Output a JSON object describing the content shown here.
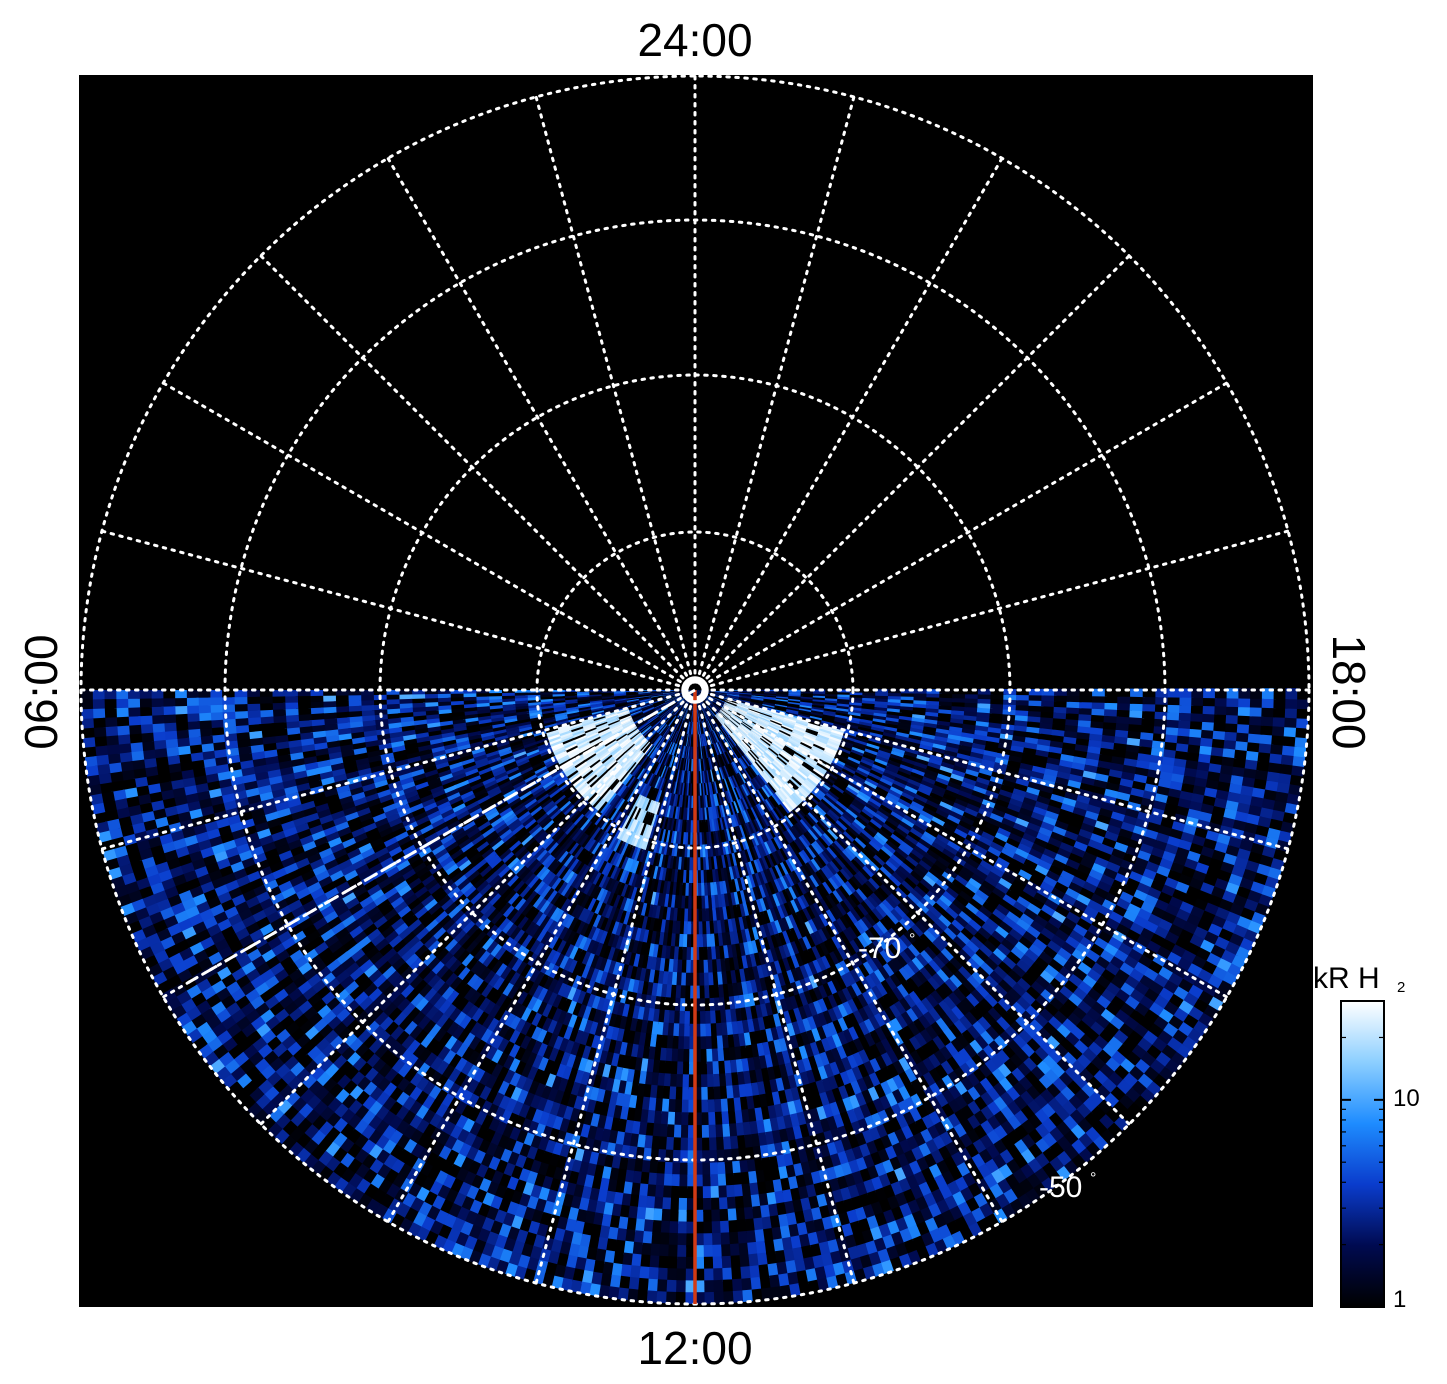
{
  "chart_data": {
    "type": "heatmap",
    "projection": "polar",
    "hemisphere": "south",
    "local_time_labels": {
      "top": "24:00",
      "bottom": "12:00",
      "left": "06:00",
      "right": "18:00"
    },
    "latitude_circles_deg": [
      -90,
      -80,
      -70,
      -60,
      -50,
      -40
    ],
    "latitude_labels": [
      {
        "text": "-70",
        "unit": "°",
        "lat": -70
      },
      {
        "text": "-50",
        "unit": "°",
        "lat": -50
      }
    ],
    "meridian_spacing_hours": 1,
    "observed_region": "dayside (06:00 to 18:00 through 12:00)",
    "red_line_local_time": "12:00",
    "dashed_line_local_time": "08:00",
    "bright_features": [
      {
        "description": "dawn arc",
        "local_time_range": [
          "07:00",
          "09:30"
        ],
        "lat_range": [
          -76,
          -70
        ],
        "intensity_kR": 30
      },
      {
        "description": "dusk arc",
        "local_time_range": [
          "14:30",
          "17:00"
        ],
        "lat_range": [
          -78,
          -70
        ],
        "intensity_kR": 30
      },
      {
        "description": "morning spot",
        "local_time": "10:30",
        "lat": -71,
        "intensity_kR": 25
      }
    ],
    "colorbar": {
      "title": "kR H",
      "title_subscript": "2",
      "scale": "log",
      "range": [
        1,
        30
      ],
      "ticks": [
        {
          "value": 1,
          "label": "1"
        },
        {
          "value": 10,
          "label": "10"
        }
      ],
      "colors": [
        "#000000",
        "#000a50",
        "#0a3ccc",
        "#1e8cff",
        "#8ccfff",
        "#ffffff"
      ]
    },
    "grid": "on"
  }
}
